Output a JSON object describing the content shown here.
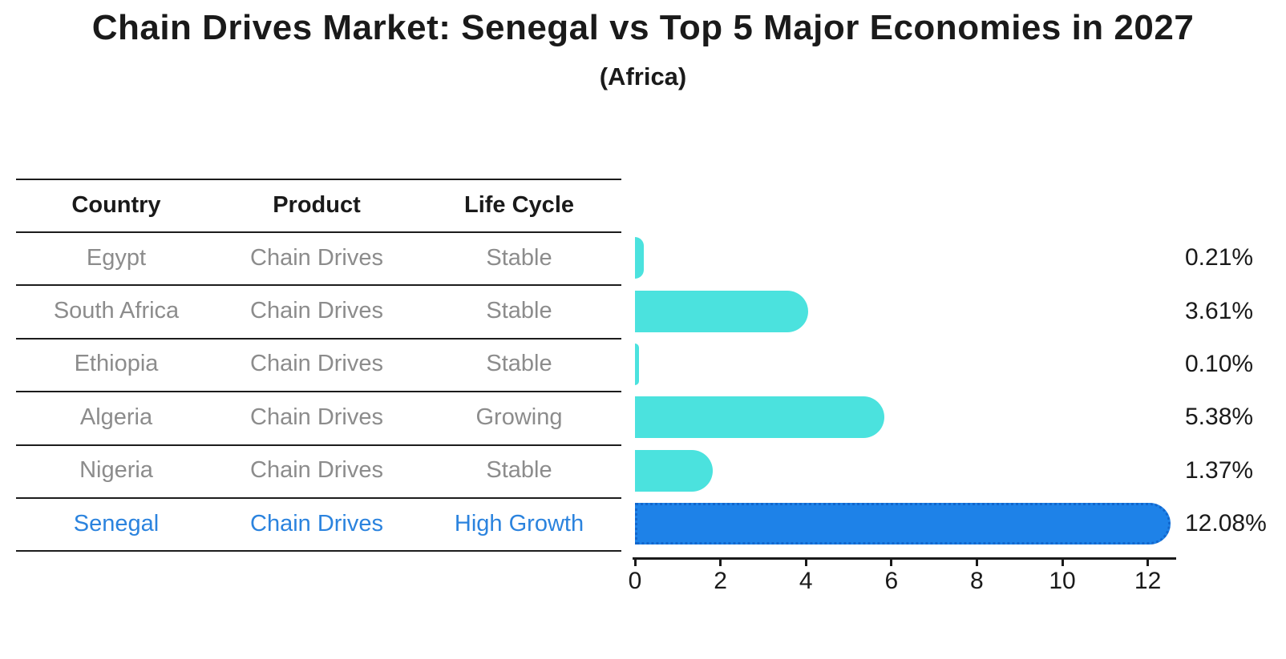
{
  "chart_data": {
    "type": "bar",
    "orientation": "horizontal",
    "title": "Chain Drives Market: Senegal vs Top 5 Major Economies in 2027",
    "subtitle": "(Africa)",
    "table": {
      "headers": [
        "Country",
        "Product",
        "Life Cycle"
      ],
      "rows": [
        {
          "country": "Egypt",
          "product": "Chain Drives",
          "life_cycle": "Stable"
        },
        {
          "country": "South Africa",
          "product": "Chain Drives",
          "life_cycle": "Stable"
        },
        {
          "country": "Ethiopia",
          "product": "Chain Drives",
          "life_cycle": "Stable"
        },
        {
          "country": "Algeria",
          "product": "Chain Drives",
          "life_cycle": "Growing"
        },
        {
          "country": "Nigeria",
          "product": "Chain Drives",
          "life_cycle": "Stable"
        },
        {
          "country": "Senegal",
          "product": "Chain Drives",
          "life_cycle": "High Growth"
        }
      ]
    },
    "categories": [
      "Egypt",
      "South Africa",
      "Ethiopia",
      "Algeria",
      "Nigeria",
      "Senegal"
    ],
    "values": [
      0.21,
      3.61,
      0.1,
      5.38,
      1.37,
      12.08
    ],
    "value_labels": [
      "0.21%",
      "3.61%",
      "0.10%",
      "5.38%",
      "1.37%",
      "12.08%"
    ],
    "highlight_index": 5,
    "xlabel": "",
    "ylabel": "",
    "xticks": [
      0,
      2,
      4,
      6,
      8,
      10,
      12
    ],
    "xlim": [
      0,
      12.7
    ],
    "grid": false,
    "legend": "none",
    "colors": {
      "bar_default": "#4be2de",
      "bar_highlight": "#1e82e8",
      "highlight_border": "#1266cc",
      "highlight_text": "#2b83de",
      "body_text": "#8c8c8c",
      "heading_text": "#1a1a1a"
    }
  }
}
